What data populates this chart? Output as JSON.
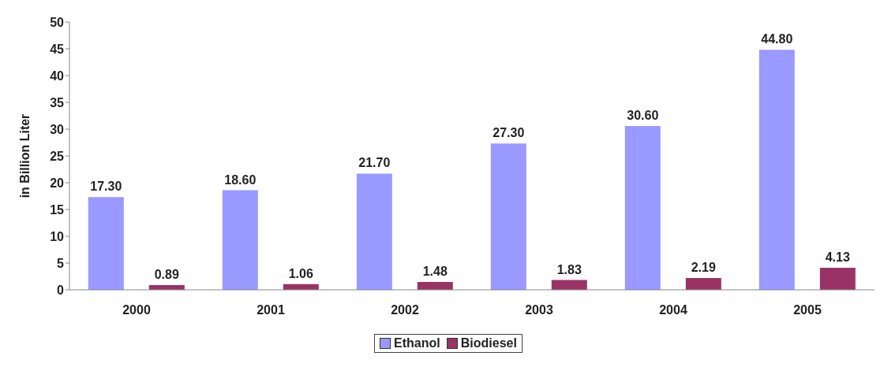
{
  "chart_data": {
    "type": "bar",
    "ylabel": "in Billion Liter",
    "categories": [
      "2000",
      "2001",
      "2002",
      "2003",
      "2004",
      "2005"
    ],
    "series": [
      {
        "name": "Ethanol",
        "color": "#9999ff",
        "values": [
          17.3,
          18.6,
          21.7,
          27.3,
          30.6,
          44.8
        ],
        "value_labels": [
          "17.30",
          "18.60",
          "21.70",
          "27.30",
          "30.60",
          "44.80"
        ]
      },
      {
        "name": "Biodiesel",
        "color": "#993366",
        "values": [
          0.89,
          1.06,
          1.48,
          1.83,
          2.19,
          4.13
        ],
        "value_labels": [
          "0.89",
          "1.06",
          "1.48",
          "1.83",
          "2.19",
          "4.13"
        ]
      }
    ],
    "ylim": [
      0,
      50
    ],
    "yticks": [
      0,
      5,
      10,
      15,
      20,
      25,
      30,
      35,
      40,
      45,
      50
    ],
    "grid": false,
    "legend": "bottom"
  }
}
